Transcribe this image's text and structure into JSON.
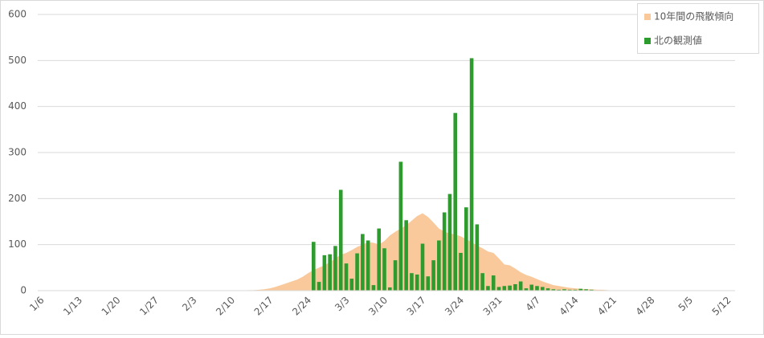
{
  "chart_data": {
    "type": "bar",
    "categories": [
      "1/6",
      null,
      null,
      null,
      null,
      null,
      null,
      "1/13",
      null,
      null,
      null,
      null,
      null,
      null,
      "1/20",
      null,
      null,
      null,
      null,
      null,
      null,
      "1/27",
      null,
      null,
      null,
      null,
      null,
      null,
      "2/3",
      null,
      null,
      null,
      null,
      null,
      null,
      "2/10",
      null,
      null,
      null,
      null,
      null,
      null,
      "2/17",
      null,
      null,
      null,
      null,
      null,
      null,
      "2/24",
      null,
      null,
      null,
      null,
      null,
      null,
      "3/3",
      null,
      null,
      null,
      null,
      null,
      null,
      "3/10",
      null,
      null,
      null,
      null,
      null,
      null,
      "3/17",
      null,
      null,
      null,
      null,
      null,
      null,
      "3/24",
      null,
      null,
      null,
      null,
      null,
      null,
      "3/31",
      null,
      null,
      null,
      null,
      null,
      null,
      "4/7",
      null,
      null,
      null,
      null,
      null,
      null,
      "4/14",
      null,
      null,
      null,
      null,
      null,
      null,
      "4/21",
      null,
      null,
      null,
      null,
      null,
      null,
      "4/28",
      null,
      null,
      null,
      null,
      null,
      null,
      "5/5",
      null,
      null,
      null,
      null,
      null,
      null,
      "5/12"
    ],
    "series": [
      {
        "name": "10年間の飛散傾向",
        "type": "area",
        "color": "#f9c99b",
        "values": [
          0,
          0,
          0,
          0,
          0,
          0,
          0,
          0,
          0,
          0,
          0,
          0,
          0,
          0,
          0,
          0,
          0,
          0,
          0,
          0,
          0,
          0,
          0,
          0,
          0,
          0,
          0,
          0,
          0,
          0,
          0,
          0,
          0,
          0,
          0,
          0,
          0,
          0,
          1,
          1,
          2,
          3,
          5,
          8,
          12,
          16,
          20,
          24,
          30,
          38,
          45,
          50,
          55,
          62,
          70,
          78,
          82,
          88,
          95,
          100,
          105,
          104,
          100,
          108,
          120,
          128,
          135,
          142,
          152,
          162,
          168,
          160,
          148,
          135,
          128,
          124,
          122,
          118,
          112,
          105,
          98,
          92,
          85,
          82,
          70,
          57,
          55,
          48,
          40,
          34,
          30,
          25,
          20,
          16,
          12,
          10,
          8,
          6,
          5,
          4,
          3,
          3,
          2,
          2,
          1,
          0,
          0,
          0,
          0,
          0,
          0,
          0,
          0,
          0,
          0,
          0,
          0,
          0,
          0,
          0,
          0,
          0,
          0,
          0,
          0,
          0,
          0
        ]
      },
      {
        "name": "北の観測値",
        "type": "bar",
        "color": "#2e9b2e",
        "values": [
          null,
          null,
          null,
          null,
          null,
          null,
          null,
          null,
          null,
          null,
          null,
          null,
          null,
          null,
          null,
          null,
          null,
          null,
          null,
          null,
          null,
          null,
          null,
          null,
          null,
          null,
          null,
          null,
          null,
          null,
          null,
          null,
          null,
          null,
          null,
          null,
          null,
          null,
          null,
          null,
          null,
          null,
          null,
          null,
          null,
          null,
          null,
          null,
          null,
          null,
          106,
          19,
          77,
          79,
          97,
          219,
          59,
          26,
          81,
          123,
          109,
          12,
          135,
          92,
          7,
          66,
          280,
          153,
          38,
          35,
          102,
          31,
          66,
          109,
          170,
          210,
          386,
          82,
          181,
          505,
          144,
          38,
          10,
          33,
          8,
          10,
          11,
          14,
          20,
          5,
          13,
          10,
          8,
          5,
          3,
          2,
          3,
          2,
          2,
          4,
          3,
          2,
          null,
          null,
          null,
          null,
          null,
          null,
          null,
          null,
          null,
          null,
          null,
          null,
          null,
          null,
          null,
          null,
          null,
          null,
          null,
          null,
          null,
          null,
          null,
          null,
          null
        ]
      }
    ],
    "ylim": [
      0,
      600
    ],
    "yticks": [
      0,
      100,
      200,
      300,
      400,
      500,
      600
    ],
    "grid": true,
    "legend": "top-right"
  }
}
